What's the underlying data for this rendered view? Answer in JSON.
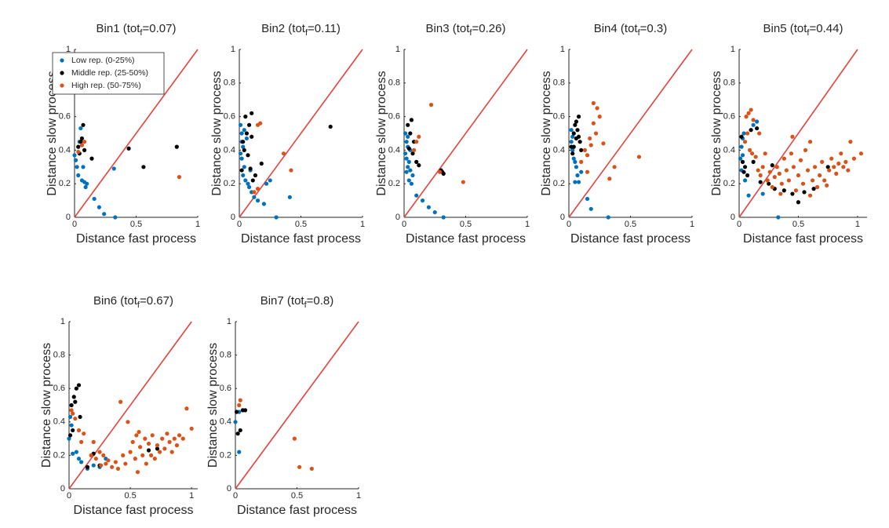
{
  "chart_data": [
    {
      "type": "scatter",
      "title": [
        "Bin1 (tot",
        "f",
        "=0.07)"
      ],
      "xlabel": "Distance fast process",
      "ylabel": "Distance slow process",
      "xlim": [
        0,
        1
      ],
      "ylim": [
        0,
        1
      ],
      "xticks": [
        0,
        0.5,
        1
      ],
      "yticks": [
        0,
        0.2,
        0.4,
        0.6,
        0.8,
        1
      ],
      "legend": "upper left",
      "series": [
        {
          "name": "Low rep. (0-25%)",
          "color": "#0072bd",
          "x": [
            0,
            0.01,
            0.02,
            0.03,
            0.05,
            0.06,
            0.08,
            0.09,
            0.1,
            0.16,
            0.2,
            0.24,
            0.33,
            0.32,
            0.04,
            0.07
          ],
          "values": [
            0.37,
            0.34,
            0.3,
            0.25,
            0.53,
            0.22,
            0.21,
            0.18,
            0.2,
            0.11,
            0.06,
            0.02,
            0,
            0.29,
            0.45,
            0.3
          ]
        },
        {
          "name": "Middle rep. (25-50%)",
          "color": "#000000",
          "x": [
            0.03,
            0.05,
            0.06,
            0.07,
            0.08,
            0.14,
            0.44,
            0.56,
            0.83,
            0.04
          ],
          "values": [
            0.42,
            0.45,
            0.47,
            0.55,
            0.4,
            0.35,
            0.41,
            0.3,
            0.42,
            0.38
          ]
        },
        {
          "name": "High rep. (50-75%)",
          "color": "#d95319",
          "x": [
            0.03,
            0.06,
            0.85,
            0.08
          ],
          "values": [
            0.39,
            0.43,
            0.24,
            0.45
          ]
        }
      ]
    },
    {
      "type": "scatter",
      "title": [
        "Bin2 (tot",
        "f",
        "=0.11)"
      ],
      "xlabel": "Distance fast process",
      "ylabel": "Distance slow process",
      "xlim": [
        0,
        1
      ],
      "ylim": [
        0,
        1
      ],
      "xticks": [
        0,
        0.5,
        1
      ],
      "yticks": [
        0,
        0.2,
        0.4,
        0.6,
        0.8,
        1
      ],
      "series": [
        {
          "color": "#0072bd",
          "x": [
            0.01,
            0.02,
            0.02,
            0.03,
            0.01,
            0.02,
            0.04,
            0.03,
            0.05,
            0.07,
            0.08,
            0.1,
            0.12,
            0.15,
            0.2,
            0.22,
            0.25,
            0.3,
            0.41,
            0.06,
            0.04,
            0.09
          ],
          "values": [
            0.55,
            0.5,
            0.45,
            0.42,
            0.38,
            0.35,
            0.3,
            0.25,
            0.22,
            0.2,
            0.18,
            0.15,
            0.12,
            0.1,
            0.08,
            0.2,
            0.22,
            0,
            0.12,
            0.47,
            0.52,
            0.28
          ]
        },
        {
          "color": "#000000",
          "x": [
            0.05,
            0.1,
            0.08,
            0.06,
            0.1,
            0.03,
            0.04,
            0.07,
            0.09,
            0.13,
            0.18,
            0.74,
            0.02,
            0.11
          ],
          "values": [
            0.6,
            0.62,
            0.55,
            0.5,
            0.48,
            0.45,
            0.4,
            0.37,
            0.29,
            0.25,
            0.32,
            0.54,
            0.28,
            0.22
          ]
        },
        {
          "color": "#d95319",
          "x": [
            0.15,
            0.17,
            0.15,
            0.36,
            0.42,
            0.12
          ],
          "values": [
            0.55,
            0.56,
            0.17,
            0.38,
            0.28,
            0.15
          ]
        }
      ]
    },
    {
      "type": "scatter",
      "title": [
        "Bin3 (tot",
        "f",
        "=0.26)"
      ],
      "xlabel": "Distance fast process",
      "ylabel": "Distance slow process",
      "xlim": [
        0,
        1
      ],
      "ylim": [
        0,
        1
      ],
      "xticks": [
        0,
        0.5,
        1
      ],
      "yticks": [
        0,
        0.2,
        0.4,
        0.6,
        0.8,
        1
      ],
      "series": [
        {
          "color": "#0072bd",
          "x": [
            0.01,
            0.02,
            0.03,
            0.01,
            0.02,
            0.04,
            0.03,
            0.05,
            0.02,
            0.04,
            0.06,
            0.1,
            0.15,
            0.2,
            0.25,
            0.32,
            0.07,
            0.05,
            0.03
          ],
          "values": [
            0.5,
            0.45,
            0.42,
            0.38,
            0.35,
            0.33,
            0.3,
            0.28,
            0.27,
            0.22,
            0.2,
            0.13,
            0.1,
            0.06,
            0.03,
            0,
            0.25,
            0.4,
            0.48
          ]
        },
        {
          "color": "#000000",
          "x": [
            0.03,
            0.06,
            0.05,
            0.08,
            0.04,
            0.07,
            0.1,
            0.12,
            0.3,
            0.32,
            0.31
          ],
          "values": [
            0.55,
            0.58,
            0.5,
            0.45,
            0.41,
            0.38,
            0.33,
            0.31,
            0.28,
            0.26,
            0.27
          ]
        },
        {
          "color": "#d95319",
          "x": [
            0.22,
            0.48,
            0.1,
            0.08,
            0.12,
            0.29
          ],
          "values": [
            0.67,
            0.21,
            0.45,
            0.4,
            0.48,
            0.27
          ]
        }
      ]
    },
    {
      "type": "scatter",
      "title": [
        "Bin4 (tot",
        "f",
        "=0.3)"
      ],
      "xlabel": "Distance fast process",
      "ylabel": "Distance slow process",
      "xlim": [
        0,
        1
      ],
      "ylim": [
        0,
        1
      ],
      "xticks": [
        0,
        0.5,
        1
      ],
      "yticks": [
        0,
        0.2,
        0.4,
        0.6,
        0.8,
        1
      ],
      "series": [
        {
          "color": "#0072bd",
          "x": [
            0.02,
            0.03,
            0.04,
            0.05,
            0.06,
            0.07,
            0.05,
            0.08,
            0.1,
            0.15,
            0.18,
            0.32,
            0.02,
            0.03
          ],
          "values": [
            0.45,
            0.4,
            0.35,
            0.33,
            0.3,
            0.25,
            0.21,
            0.21,
            0.27,
            0.11,
            0.05,
            0,
            0.52,
            0.48
          ]
        },
        {
          "color": "#000000",
          "x": [
            0.02,
            0.04,
            0.05,
            0.06,
            0.08,
            0.07,
            0.03,
            0.09,
            0.06,
            0.04,
            0.1,
            0.08
          ],
          "values": [
            0.42,
            0.5,
            0.55,
            0.57,
            0.6,
            0.52,
            0.38,
            0.45,
            0.47,
            0.42,
            0.4,
            0.48
          ]
        },
        {
          "color": "#d95319",
          "x": [
            0.2,
            0.23,
            0.25,
            0.2,
            0.22,
            0.13,
            0.17,
            0.15,
            0.1,
            0.28,
            0.37,
            0.33,
            0.57,
            0.15,
            0.18
          ],
          "values": [
            0.68,
            0.65,
            0.6,
            0.56,
            0.5,
            0.4,
            0.47,
            0.37,
            0.33,
            0.44,
            0.3,
            0.23,
            0.36,
            0.27,
            0.43
          ]
        }
      ]
    },
    {
      "type": "scatter",
      "title": [
        "Bin5 (tot",
        "f",
        "=0.44)"
      ],
      "xlabel": "Distance fast process",
      "ylabel": "Distance slow process",
      "xlim": [
        0,
        1.08
      ],
      "ylim": [
        0,
        1
      ],
      "xticks": [
        0,
        0.5,
        1
      ],
      "yticks": [
        0,
        0.2,
        0.4,
        0.6,
        0.8,
        1
      ],
      "series": [
        {
          "color": "#0072bd",
          "x": [
            0.01,
            0.02,
            0.03,
            0.04,
            0.02,
            0.05,
            0.08,
            0.12,
            0.15,
            0.2,
            0.33,
            0.03
          ],
          "values": [
            0.35,
            0.42,
            0.47,
            0.5,
            0.28,
            0.22,
            0.13,
            0.55,
            0.57,
            0.14,
            0,
            0.37
          ]
        },
        {
          "color": "#000000",
          "x": [
            0.02,
            0.03,
            0.05,
            0.04,
            0.07,
            0.1,
            0.15,
            0.12,
            0.18,
            0.25,
            0.3,
            0.38,
            0.45,
            0.5,
            0.55,
            0.63,
            0.75,
            0.28
          ],
          "values": [
            0.48,
            0.33,
            0.3,
            0.27,
            0.25,
            0.52,
            0.53,
            0.33,
            0.21,
            0.2,
            0.17,
            0.16,
            0.14,
            0.09,
            0.15,
            0.17,
            0.3,
            0.31
          ]
        },
        {
          "color": "#d95319",
          "x": [
            0.05,
            0.06,
            0.08,
            0.1,
            0.12,
            0.07,
            0.09,
            0.11,
            0.14,
            0.16,
            0.18,
            0.2,
            0.22,
            0.24,
            0.26,
            0.28,
            0.3,
            0.32,
            0.34,
            0.36,
            0.38,
            0.4,
            0.42,
            0.44,
            0.46,
            0.48,
            0.5,
            0.52,
            0.54,
            0.56,
            0.58,
            0.6,
            0.62,
            0.64,
            0.66,
            0.68,
            0.7,
            0.72,
            0.74,
            0.76,
            0.78,
            0.8,
            0.82,
            0.84,
            0.86,
            0.88,
            0.9,
            0.92,
            0.94,
            0.97,
            1.03,
            0.6,
            0.45,
            0.17,
            0.35
          ],
          "values": [
            0.45,
            0.6,
            0.62,
            0.64,
            0.58,
            0.5,
            0.4,
            0.38,
            0.36,
            0.28,
            0.25,
            0.3,
            0.38,
            0.22,
            0.27,
            0.18,
            0.24,
            0.3,
            0.26,
            0.2,
            0.35,
            0.28,
            0.22,
            0.38,
            0.3,
            0.16,
            0.25,
            0.34,
            0.2,
            0.4,
            0.28,
            0.13,
            0.22,
            0.3,
            0.18,
            0.25,
            0.33,
            0.22,
            0.19,
            0.28,
            0.35,
            0.3,
            0.26,
            0.32,
            0.38,
            0.3,
            0.33,
            0.28,
            0.45,
            0.35,
            0.38,
            0.45,
            0.48,
            0.5,
            0.14
          ]
        }
      ]
    },
    {
      "type": "scatter",
      "title": [
        "Bin6 (tot",
        "f",
        "=0.67)"
      ],
      "xlabel": "Distance fast process",
      "ylabel": "Distance slow process",
      "xlim": [
        0,
        1.05
      ],
      "ylim": [
        0,
        1
      ],
      "xticks": [
        0,
        0.5,
        1
      ],
      "yticks": [
        0,
        0.2,
        0.4,
        0.6,
        0.8,
        1
      ],
      "series": [
        {
          "color": "#0072bd",
          "x": [
            0.01,
            0.02,
            0.03,
            0.06,
            0.08,
            0.1,
            0.15,
            0.2,
            0.25,
            0.3,
            0
          ],
          "values": [
            0.43,
            0.38,
            0.21,
            0.22,
            0.18,
            0.16,
            0.12,
            0.14,
            0.13,
            0.18,
            0.3
          ]
        },
        {
          "color": "#000000",
          "x": [
            0.02,
            0.04,
            0.06,
            0.08,
            0.05,
            0.03,
            0.01,
            0.09,
            0.2,
            0.15,
            0.25,
            0.65,
            0.72
          ],
          "values": [
            0.5,
            0.55,
            0.6,
            0.62,
            0.52,
            0.35,
            0.32,
            0.43,
            0.21,
            0.13,
            0.14,
            0.23,
            0.24
          ]
        },
        {
          "color": "#d95319",
          "x": [
            0.02,
            0.03,
            0.05,
            0.08,
            0.1,
            0.12,
            0.18,
            0.22,
            0.25,
            0.28,
            0.3,
            0.32,
            0.35,
            0.38,
            0.4,
            0.42,
            0.44,
            0.46,
            0.48,
            0.5,
            0.52,
            0.54,
            0.55,
            0.57,
            0.58,
            0.6,
            0.62,
            0.63,
            0.65,
            0.67,
            0.68,
            0.7,
            0.72,
            0.74,
            0.76,
            0.78,
            0.8,
            0.82,
            0.84,
            0.86,
            0.88,
            0.9,
            0.93,
            0.96,
            1,
            0.2,
            0.26,
            0.56
          ],
          "values": [
            0.47,
            0.45,
            0.42,
            0.35,
            0.28,
            0.33,
            0.2,
            0.18,
            0.22,
            0.2,
            0.15,
            0.17,
            0.13,
            0.16,
            0.12,
            0.52,
            0.2,
            0.15,
            0.4,
            0.22,
            0.28,
            0.18,
            0.32,
            0.34,
            0.25,
            0.2,
            0.3,
            0.15,
            0.27,
            0.2,
            0.32,
            0.18,
            0.26,
            0.22,
            0.3,
            0.24,
            0.33,
            0.28,
            0.22,
            0.3,
            0.26,
            0.32,
            0.3,
            0.48,
            0.36,
            0.28,
            0.14,
            0.1
          ]
        }
      ]
    },
    {
      "type": "scatter",
      "title": [
        "Bin7 (tot",
        "f",
        "=0.8)"
      ],
      "xlabel": "Distance fast process",
      "ylabel": "Distance slow process",
      "xlim": [
        0,
        1
      ],
      "ylim": [
        0,
        1
      ],
      "xticks": [
        0,
        0.5,
        1
      ],
      "yticks": [
        0,
        0.2,
        0.4,
        0.6,
        0.8,
        1
      ],
      "series": [
        {
          "color": "#0072bd",
          "x": [
            0,
            0.03,
            0.03
          ],
          "values": [
            0.4,
            0.22,
            0.46
          ]
        },
        {
          "color": "#000000",
          "x": [
            0.01,
            0.02,
            0.04,
            0.06,
            0.08
          ],
          "values": [
            0.46,
            0.33,
            0.35,
            0.47,
            0.47
          ]
        },
        {
          "color": "#d95319",
          "x": [
            0.04,
            0.03,
            0.48,
            0.52,
            0.62
          ],
          "values": [
            0.53,
            0.5,
            0.3,
            0.13,
            0.12
          ]
        }
      ]
    }
  ]
}
